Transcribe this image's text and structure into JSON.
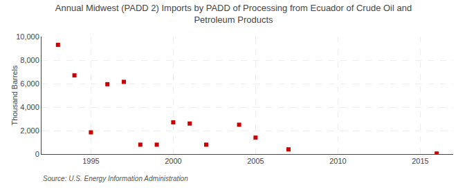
{
  "chart_data": {
    "type": "scatter",
    "title": "Annual Midwest (PADD 2) Imports by PADD of Processing from Ecuador of Crude Oil and\nPetroleum Products",
    "ylabel": "Thousand Barrels",
    "annotations": [
      "Source: U.S. Energy Information Administration"
    ],
    "x": [
      1993,
      1994,
      1995,
      1996,
      1997,
      1998,
      1999,
      2000,
      2001,
      2002,
      2004,
      2005,
      2007,
      2016
    ],
    "values": [
      9300,
      6700,
      1850,
      5950,
      6150,
      800,
      800,
      2700,
      2600,
      800,
      2500,
      1400,
      400,
      50
    ],
    "color": "#cc0000",
    "marker": "square",
    "xlim": [
      1992,
      2017
    ],
    "xticks": [
      1995,
      2000,
      2005,
      2010,
      2015
    ],
    "ylim": [
      0,
      10000
    ],
    "yticks": [
      0,
      {
        "value": 2000,
        "label": "2,000"
      },
      {
        "value": 4000,
        "label": "4,000"
      },
      {
        "value": 6000,
        "label": "6,000"
      },
      {
        "value": 8000,
        "label": "8,000"
      },
      {
        "value": 10000,
        "label": "10,000"
      }
    ],
    "grid": true
  }
}
